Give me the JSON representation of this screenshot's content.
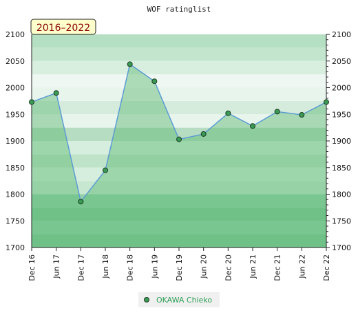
{
  "chart_data": {
    "type": "line",
    "title": "WOF ratinglist",
    "badge": "2016–2022",
    "xlabel": "",
    "ylabel": "",
    "ylim": [
      1700,
      2100
    ],
    "yticks": [
      1700,
      1750,
      1800,
      1850,
      1900,
      1950,
      2000,
      2050,
      2100
    ],
    "categories": [
      "Dec 16",
      "Jun 17",
      "Dec 17",
      "Jun 18",
      "Dec 18",
      "Jun 19",
      "Dec 19",
      "Jun 20",
      "Dec 20",
      "Jun 21",
      "Dec 21",
      "Jun 22",
      "Dec 22"
    ],
    "series": [
      {
        "name": "OKAWA Chieko",
        "values": [
          1973,
          1990,
          1786,
          1845,
          2044,
          2012,
          1903,
          1913,
          1952,
          1928,
          1955,
          1949,
          1973
        ]
      }
    ],
    "legend_position": "bottom-center",
    "grid": true,
    "colors": {
      "line": "#5b9bd5",
      "marker": "#3a9a55",
      "area": "#5cb870",
      "band_dark": "#7cc495",
      "band_mid": "#a8d8b6",
      "band_light": "#d9efe0",
      "badge_bg": "#ffffcc"
    }
  }
}
